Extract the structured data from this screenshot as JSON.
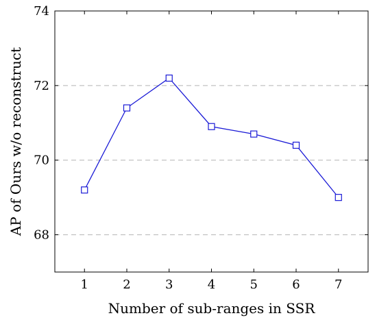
{
  "chart_data": {
    "type": "line",
    "title": "",
    "xlabel": "Number of sub-ranges in SSR",
    "ylabel": "AP of Ours w/o reconstruct",
    "x": [
      1,
      2,
      3,
      4,
      5,
      6,
      7
    ],
    "xticks": [
      "1",
      "2",
      "3",
      "4",
      "5",
      "6",
      "7"
    ],
    "xlim": [
      0.3,
      7.7
    ],
    "ylim": [
      67,
      74
    ],
    "yticks": [
      68,
      70,
      72,
      74
    ],
    "ytick_labels": [
      "68",
      "70",
      "72",
      "74"
    ],
    "grid": "horizontal-dashed",
    "series": [
      {
        "values": [
          69.2,
          71.4,
          72.2,
          70.9,
          70.7,
          70.4,
          69.0
        ],
        "color": "#1a1ad6",
        "marker": "square"
      }
    ]
  }
}
